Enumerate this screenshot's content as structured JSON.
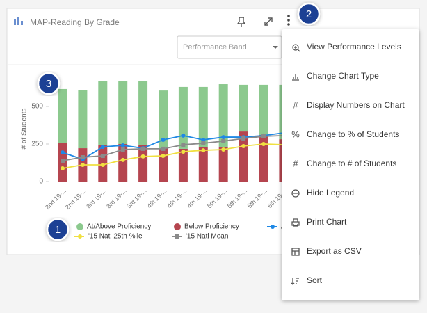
{
  "header": {
    "title": "MAP-Reading By Grade",
    "dropdown": "Performance Band"
  },
  "chart": {
    "y_label": "# of Students",
    "ylim": [
      0,
      750
    ],
    "yticks": [
      0,
      250,
      500
    ],
    "categories": [
      "2nd 19-...",
      "2nd 19-...",
      "3rd 19-...",
      "3rd 19-...",
      "3rd 19-...",
      "4th 19-...",
      "4th 19-...",
      "4th 19-...",
      "5th 19-...",
      "5th 19-...",
      "5th 19-...",
      "6th 19-..."
    ],
    "bars": [
      {
        "name": "Below Proficiency",
        "color": "#b5454f",
        "values": [
          259,
          222,
          241,
          250,
          241,
          222,
          218,
          227,
          231,
          333,
          310,
          282
        ]
      },
      {
        "name": "At/Above Proficiency",
        "color": "#8cc98e",
        "values": [
          357,
          389,
          426,
          417,
          426,
          384,
          412,
          403,
          417,
          311,
          334,
          362
        ]
      }
    ],
    "lines": [
      {
        "name": "A",
        "color": "#1e88e5",
        "marker": "circle",
        "values": [
          194,
          148,
          231,
          241,
          222,
          278,
          306,
          278,
          296,
          296,
          306,
          324
        ]
      },
      {
        "name": "'15 Natl 25th %ile",
        "color": "#f0e040",
        "marker": "circle",
        "values": [
          88,
          111,
          111,
          144,
          167,
          171,
          199,
          208,
          213,
          236,
          250,
          245
        ]
      },
      {
        "name": "'15 Natl Mean",
        "color": "#8a8a8a",
        "marker": "square",
        "values": [
          139,
          162,
          171,
          213,
          218,
          218,
          245,
          255,
          269,
          287,
          301,
          306
        ]
      }
    ]
  },
  "menu": {
    "items": [
      {
        "label": "View Performance Levels"
      },
      {
        "label": "Change Chart Type"
      },
      {
        "icon": "#",
        "label": "Display Numbers on Chart"
      },
      {
        "icon": "%",
        "label": "Change to % of Students"
      },
      {
        "icon": "#",
        "label": "Change to # of Students"
      },
      {
        "label": "Hide Legend"
      },
      {
        "label": "Print Chart"
      },
      {
        "label": "Export as CSV"
      },
      {
        "label": "Sort"
      }
    ]
  },
  "badges": [
    "1",
    "2",
    "3"
  ]
}
